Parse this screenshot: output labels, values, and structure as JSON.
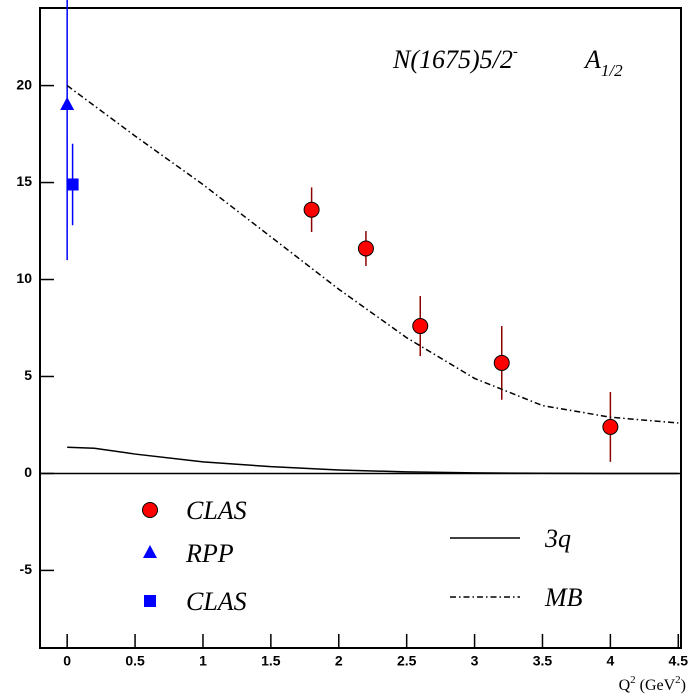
{
  "chart_data": {
    "type": "scatter",
    "title": {
      "main": "N(1675)5/2",
      "sup": "-",
      "amp": "A",
      "sub": "1/2"
    },
    "xlabel": [
      "Q",
      "2",
      " (GeV",
      "2",
      ")"
    ],
    "xlim": [
      -0.2,
      4.52
    ],
    "ylim": [
      -9,
      24
    ],
    "xticks": [
      0,
      0.5,
      1,
      1.5,
      2,
      2.5,
      3,
      3.5,
      4,
      4.5
    ],
    "yticks": [
      -5,
      0,
      5,
      10,
      15,
      20
    ],
    "series": [
      {
        "name": "CLAS",
        "kind": "points",
        "marker": "circle",
        "color": "#ff0000",
        "error_color": "#8b0000",
        "x": [
          1.8,
          2.2,
          2.6,
          3.2,
          4.0
        ],
        "values": [
          13.6,
          11.6,
          7.6,
          5.7,
          2.4
        ],
        "errors": [
          1.15,
          0.9,
          1.55,
          1.9,
          1.8
        ]
      },
      {
        "name": "RPP",
        "kind": "points",
        "marker": "triangle",
        "color": "#0000ff",
        "error_color": "#0000ff",
        "x": [
          0
        ],
        "values": [
          19
        ],
        "errors": [
          8
        ]
      },
      {
        "name": "CLAS",
        "kind": "points",
        "marker": "square",
        "color": "#0000ff",
        "error_color": "#0000ff",
        "x": [
          0.04
        ],
        "values": [
          14.9
        ],
        "errors": [
          2.1
        ]
      },
      {
        "name": "3q",
        "kind": "line",
        "style": "solid",
        "color": "#000000",
        "x": [
          0,
          0.2,
          0.5,
          1,
          1.5,
          2,
          2.5,
          3,
          3.5,
          4,
          4.5
        ],
        "values": [
          1.35,
          1.3,
          1.0,
          0.6,
          0.35,
          0.18,
          0.08,
          0.03,
          0.01,
          0,
          0
        ]
      },
      {
        "name": "MB",
        "kind": "line",
        "style": "dashdot",
        "color": "#000000",
        "x": [
          0,
          0.5,
          1,
          1.5,
          2,
          2.5,
          3,
          3.5,
          4,
          4.5
        ],
        "values": [
          20,
          17.4,
          14.9,
          12.2,
          9.5,
          7.0,
          4.9,
          3.5,
          2.9,
          2.6
        ]
      }
    ]
  }
}
